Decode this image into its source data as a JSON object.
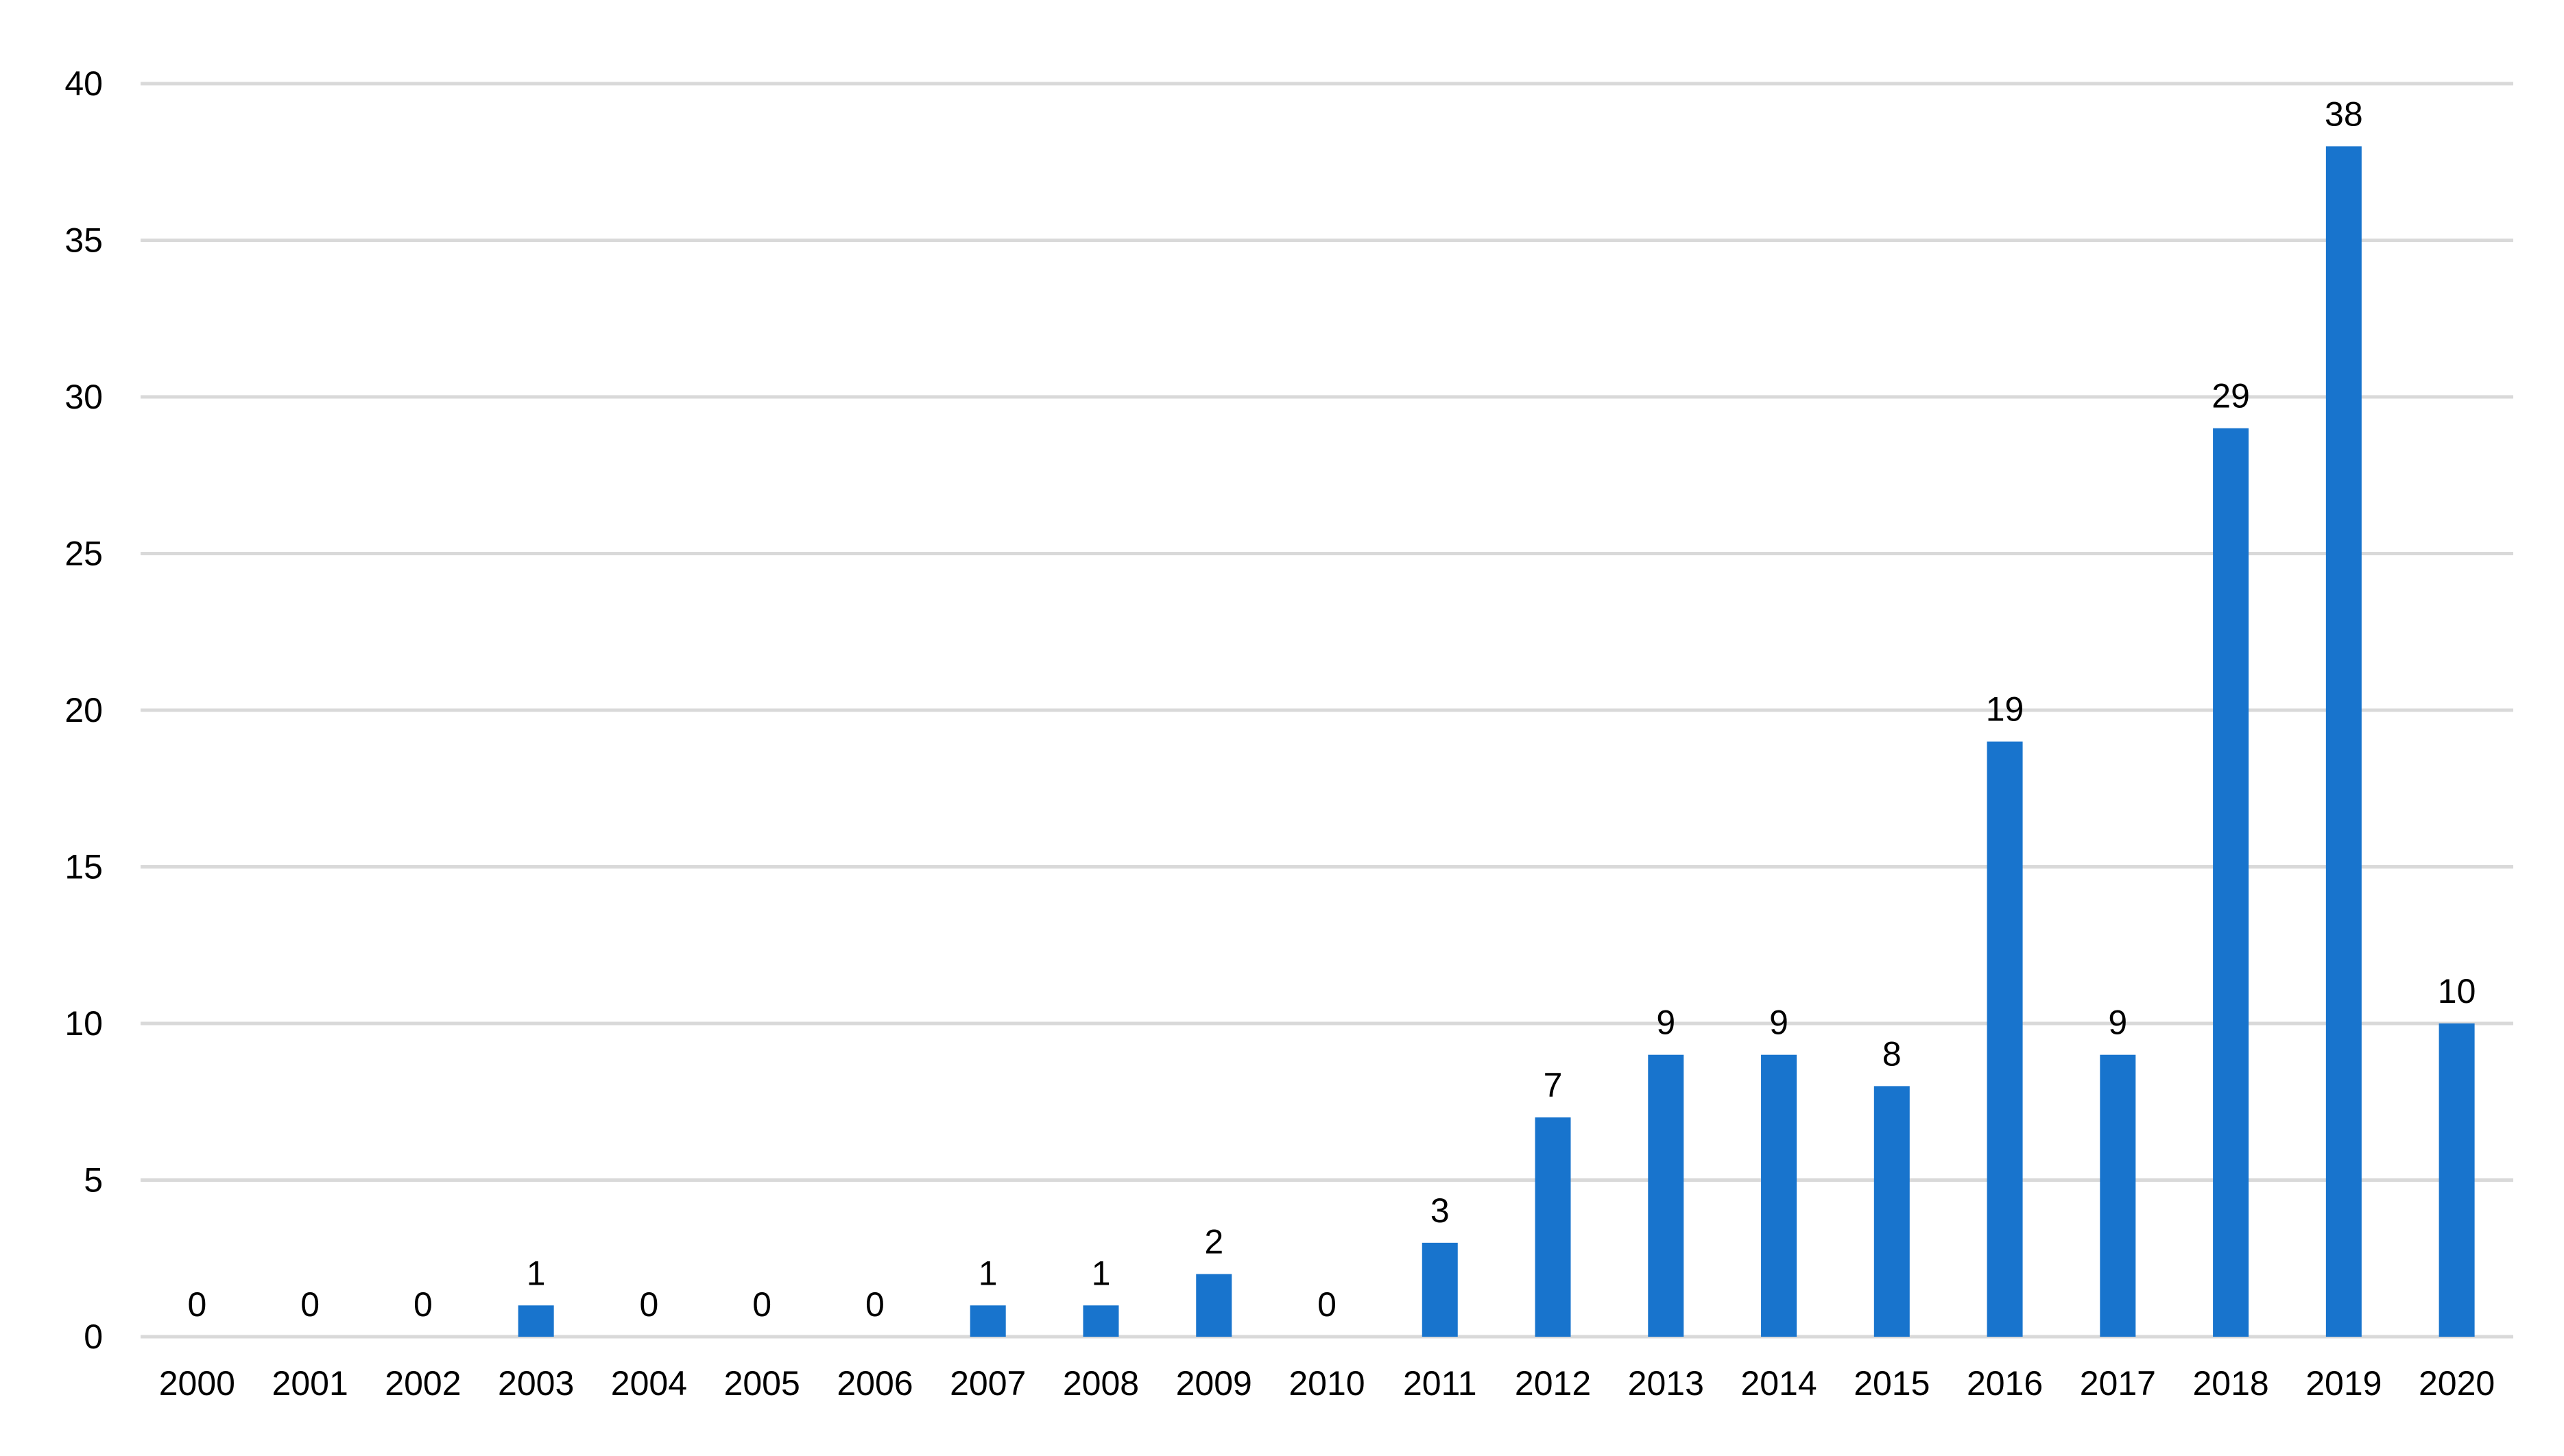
{
  "chart_data": {
    "type": "bar",
    "title": "",
    "xlabel": "",
    "ylabel": "",
    "categories": [
      "2000",
      "2001",
      "2002",
      "2003",
      "2004",
      "2005",
      "2006",
      "2007",
      "2008",
      "2009",
      "2010",
      "2011",
      "2012",
      "2013",
      "2014",
      "2015",
      "2016",
      "2017",
      "2018",
      "2019",
      "2020"
    ],
    "values": [
      0,
      0,
      0,
      1,
      0,
      0,
      0,
      1,
      1,
      2,
      0,
      3,
      7,
      9,
      9,
      8,
      19,
      9,
      29,
      38,
      10
    ],
    "ylim": [
      0,
      40
    ],
    "yticks": [
      0,
      5,
      10,
      15,
      20,
      25,
      30,
      35,
      40
    ],
    "grid": true,
    "legend": "none",
    "data_labels": true,
    "bar_color": "#1874CD",
    "grid_color": "#D9D9D9"
  }
}
